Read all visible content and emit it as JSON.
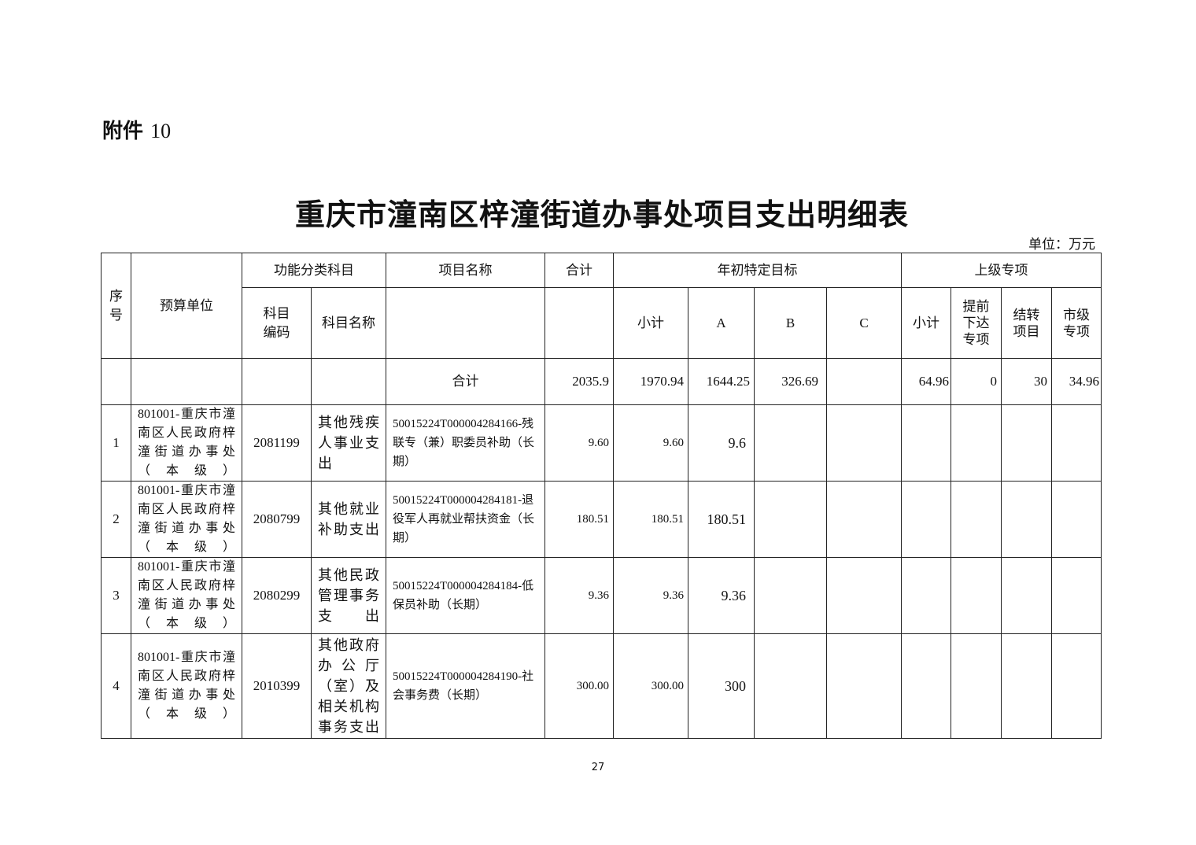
{
  "attachment": {
    "label": "附件",
    "number": "10"
  },
  "title": "重庆市潼南区梓潼街道办事处项目支出明细表",
  "unit": "单位：万元",
  "page_number": "27",
  "headers": {
    "seq": "序号",
    "budget_unit": "预算单位",
    "func_class": "功能分类科目",
    "subject_code": "科目编码",
    "subject_name": "科目名称",
    "project_name": "项目名称",
    "total": "合计",
    "annual_target": "年初特定目标",
    "subtotal": "小计",
    "a": "A",
    "b": "B",
    "c": "C",
    "superior": "上级专项",
    "sup_subtotal": "小计",
    "advance": "提前下达专项",
    "carryover": "结转项目",
    "city": "市级专项"
  },
  "total_row": {
    "label": "合计",
    "total": "2035.9",
    "subtotal": "1970.94",
    "a": "1644.25",
    "b": "326.69",
    "c": "",
    "sup_subtotal": "64.96",
    "advance": "0",
    "carryover": "30",
    "city": "34.96"
  },
  "rows": [
    {
      "seq": "1",
      "unit": "801001-重庆市潼南区人民政府梓潼街道办事处（本级）",
      "code": "2081199",
      "subject": "其他残疾人事业支出",
      "project": "50015224T000004284166-残联专（兼）职委员补助（长期）",
      "total": "9.60",
      "subtotal": "9.60",
      "a": "9.6"
    },
    {
      "seq": "2",
      "unit": "801001-重庆市潼南区人民政府梓潼街道办事处（本级）",
      "code": "2080799",
      "subject": "其他就业补助支出",
      "project": "50015224T000004284181-退役军人再就业帮扶资金（长期）",
      "total": "180.51",
      "subtotal": "180.51",
      "a": "180.51"
    },
    {
      "seq": "3",
      "unit": "801001-重庆市潼南区人民政府梓潼街道办事处（本级）",
      "code": "2080299",
      "subject": "其他民政管理事务支出",
      "project": "50015224T000004284184-低保员补助（长期）",
      "total": "9.36",
      "subtotal": "9.36",
      "a": "9.36"
    },
    {
      "seq": "4",
      "unit": "801001-重庆市潼南区人民政府梓潼街道办事处（本级）",
      "code": "2010399",
      "subject": "其他政府办公厅（室）及相关机构事务支出",
      "project": "50015224T000004284190-社会事务费（长期）",
      "total": "300.00",
      "subtotal": "300.00",
      "a": "300"
    }
  ]
}
